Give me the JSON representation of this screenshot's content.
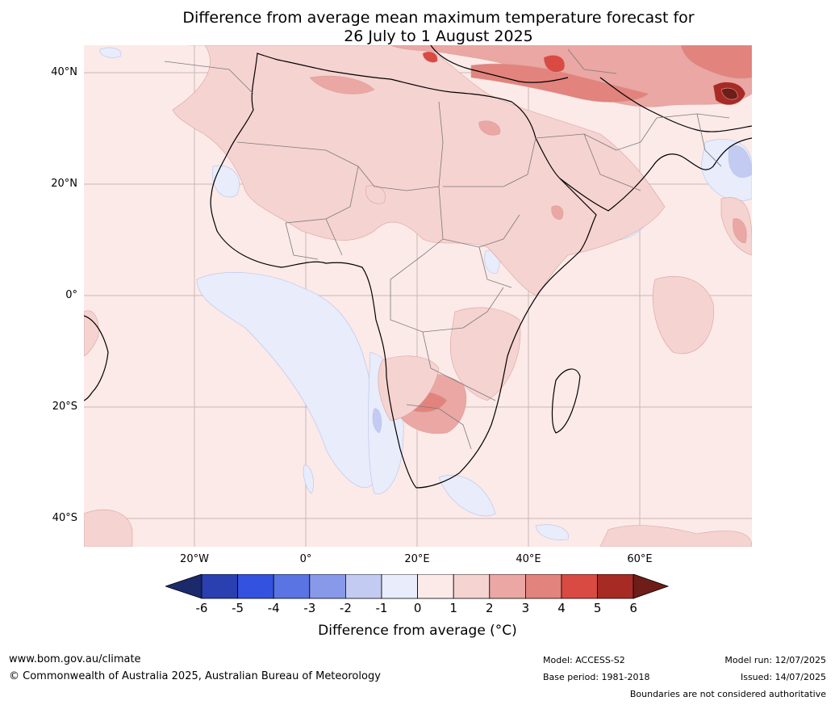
{
  "title": {
    "line1": "Difference from average mean maximum temperature forecast for",
    "line2": "26 July to 1 August 2025"
  },
  "map": {
    "lat_labels": [
      "40°N",
      "20°N",
      "0°",
      "20°S",
      "40°S"
    ],
    "lon_labels": [
      "20°W",
      "0°",
      "20°E",
      "40°E",
      "60°E"
    ],
    "land_base_color": "#fbeae8",
    "anomaly_colors": {
      "below_minus_6": "#1a2a6c",
      "-6_to_-5": "#2a3fb0",
      "-5_to_-4": "#3452e0",
      "-4_to_-3": "#5a74e4",
      "-3_to_-2": "#8799e8",
      "-2_to_-1": "#c3cbf2",
      "-1_to_0": "#e8ecfb",
      "0_to_1": "#fbeae8",
      "1_to_2": "#f5d3d1",
      "2_to_3": "#eaa7a3",
      "3_to_4": "#e2837d",
      "4_to_5": "#d94a43",
      "5_to_6": "#a82a24",
      "above_6": "#6e1d18"
    }
  },
  "colorbar": {
    "ticks": [
      "-6",
      "-5",
      "-4",
      "-3",
      "-2",
      "-1",
      "0",
      "1",
      "2",
      "3",
      "4",
      "5",
      "6"
    ],
    "colors": [
      "#2a3fb0",
      "#3452e0",
      "#5a74e4",
      "#8799e8",
      "#c3cbf2",
      "#e8ecfb",
      "#fbeae8",
      "#f5d3d1",
      "#eaa7a3",
      "#e2837d",
      "#d94a43",
      "#a82a24"
    ],
    "low_extend_color": "#1a2a6c",
    "high_extend_color": "#6e1d18",
    "label": "Difference from average (°C)"
  },
  "footer": {
    "website": "www.bom.gov.au/climate",
    "copyright": "© Commonwealth of Australia 2025, Australian Bureau of Meteorology",
    "model": "Model: ACCESS-S2",
    "base_period": "Base period: 1981-2018",
    "model_run": "Model run: 12/07/2025",
    "issued": "Issued: 14/07/2025",
    "disclaimer": "Boundaries are not considered authoritative"
  }
}
